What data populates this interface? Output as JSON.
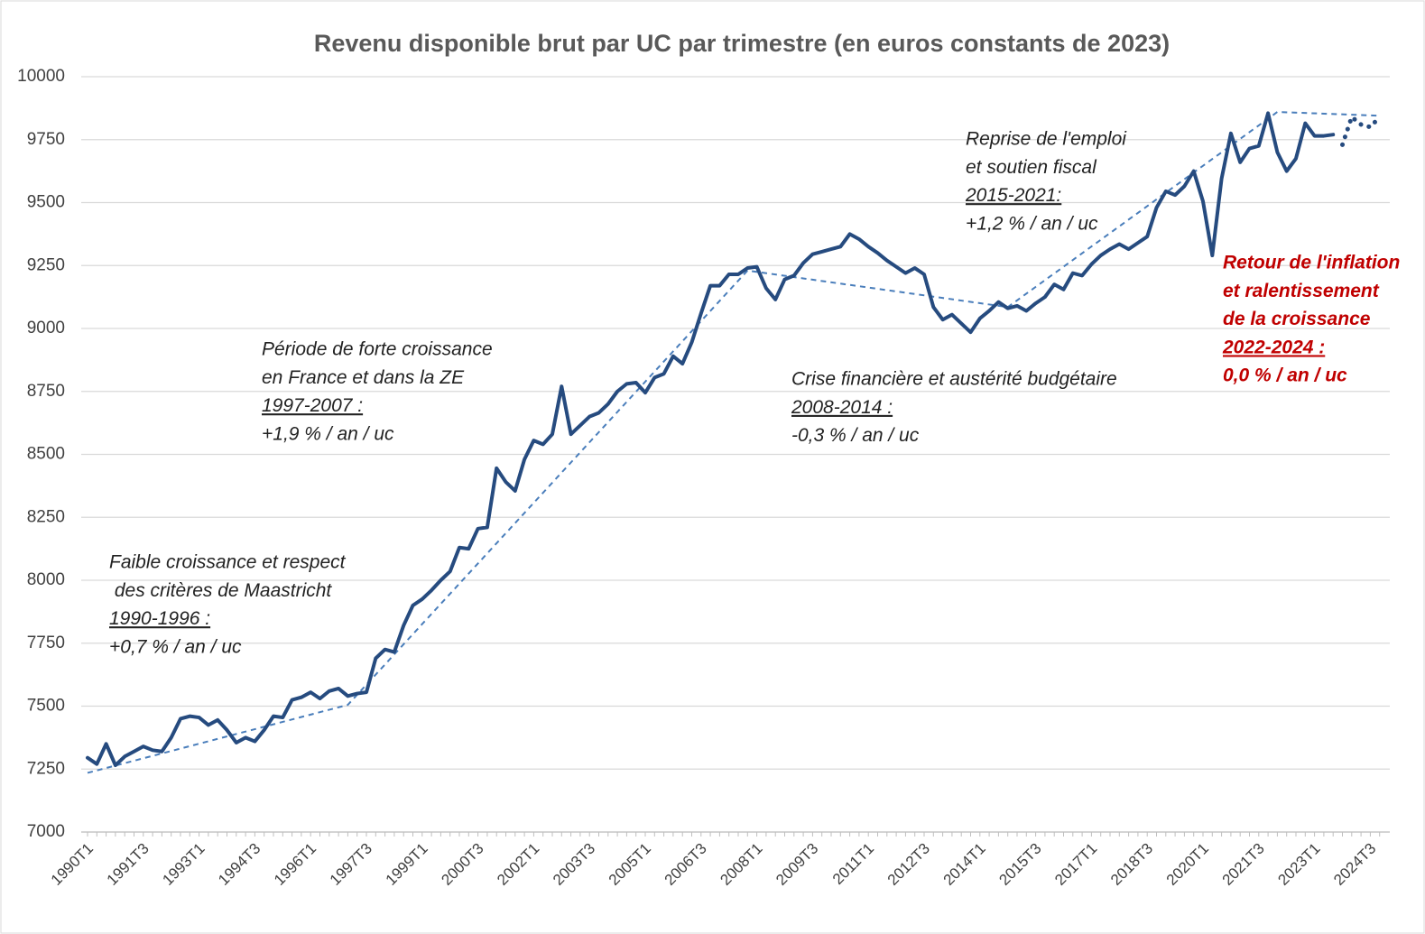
{
  "chart_data": {
    "type": "line",
    "title": "Revenu disponible brut par UC par trimestre (en euros constants de 2023)",
    "categories": [
      "1990T1",
      null,
      null,
      null,
      null,
      null,
      "1991T3",
      null,
      null,
      null,
      null,
      null,
      "1993T1",
      null,
      null,
      null,
      null,
      null,
      "1994T3",
      null,
      null,
      null,
      null,
      null,
      "1996T1",
      null,
      null,
      null,
      null,
      null,
      "1997T3",
      null,
      null,
      null,
      null,
      null,
      "1999T1",
      null,
      null,
      null,
      null,
      null,
      "2000T3",
      null,
      null,
      null,
      null,
      null,
      "2002T1",
      null,
      null,
      null,
      null,
      null,
      "2003T3",
      null,
      null,
      null,
      null,
      null,
      "2005T1",
      null,
      null,
      null,
      null,
      null,
      "2006T3",
      null,
      null,
      null,
      null,
      null,
      "2008T1",
      null,
      null,
      null,
      null,
      null,
      "2009T3",
      null,
      null,
      null,
      null,
      null,
      "2011T1",
      null,
      null,
      null,
      null,
      null,
      "2012T3",
      null,
      null,
      null,
      null,
      null,
      "2014T1",
      null,
      null,
      null,
      null,
      null,
      "2015T3",
      null,
      null,
      null,
      null,
      null,
      "2017T1",
      null,
      null,
      null,
      null,
      null,
      "2018T3",
      null,
      null,
      null,
      null,
      null,
      "2020T1",
      null,
      null,
      null,
      null,
      null,
      "2021T3",
      null,
      null,
      null,
      null,
      null,
      "2023T1",
      null,
      null,
      null,
      null,
      null,
      "2024T3",
      null
    ],
    "series": [
      {
        "color": "#264b7f",
        "style": "solid",
        "values": [
          7295,
          7270,
          7350,
          7265,
          7300,
          7320,
          7340,
          7325,
          7320,
          7375,
          7450,
          7460,
          7455,
          7425,
          7445,
          7405,
          7355,
          7375,
          7360,
          7405,
          7460,
          7455,
          7525,
          7535,
          7555,
          7530,
          7560,
          7570,
          7540,
          7550,
          7555,
          7690,
          7725,
          7715,
          7820,
          7900,
          7925,
          7960,
          8000,
          8035,
          8130,
          8125,
          8205,
          8210,
          8445,
          8390,
          8355,
          8480,
          8555,
          8540,
          8580,
          8770,
          8580,
          8615,
          8650,
          8665,
          8700,
          8750,
          8780,
          8785,
          8745,
          8805,
          8820,
          8890,
          8860,
          8945,
          9060,
          9170,
          9170,
          9215,
          9215,
          9240,
          9245,
          9160,
          9115,
          9195,
          9210,
          9260,
          9295,
          9305,
          9315,
          9325,
          9375,
          9355,
          9325,
          9300,
          9270,
          9245,
          9220,
          9240,
          9215,
          9085,
          9035,
          9055,
          9020,
          8985,
          9040,
          9070,
          9105,
          9080,
          9090,
          9070,
          9100,
          9125,
          9175,
          9155,
          9220,
          9210,
          9255,
          9290,
          9315,
          9335,
          9315,
          9340,
          9365,
          9480,
          9545,
          9530,
          9565,
          9625,
          9505,
          9290,
          9595,
          9775,
          9660,
          9715,
          9725,
          9855,
          9700,
          9625,
          9675,
          9815,
          9765,
          9765,
          9770,
          null,
          null,
          null,
          null,
          null
        ]
      },
      {
        "color": "#264b7f",
        "style": "dotted",
        "values": [
          null,
          null,
          null,
          null,
          null,
          null,
          null,
          null,
          null,
          null,
          null,
          null,
          null,
          null,
          null,
          null,
          null,
          null,
          null,
          null,
          null,
          null,
          null,
          null,
          null,
          null,
          null,
          null,
          null,
          null,
          null,
          null,
          null,
          null,
          null,
          null,
          null,
          null,
          null,
          null,
          null,
          null,
          null,
          null,
          null,
          null,
          null,
          null,
          null,
          null,
          null,
          null,
          null,
          null,
          null,
          null,
          null,
          null,
          null,
          null,
          null,
          null,
          null,
          null,
          null,
          null,
          null,
          null,
          null,
          null,
          null,
          null,
          null,
          null,
          null,
          null,
          null,
          null,
          null,
          null,
          null,
          null,
          null,
          null,
          null,
          null,
          null,
          null,
          null,
          null,
          null,
          null,
          null,
          null,
          null,
          null,
          null,
          null,
          null,
          null,
          null,
          null,
          null,
          null,
          null,
          null,
          null,
          null,
          null,
          null,
          null,
          null,
          null,
          null,
          null,
          null,
          null,
          null,
          null,
          null,
          null,
          null,
          null,
          null,
          null,
          null,
          null,
          null,
          null,
          null,
          null,
          null,
          null,
          null,
          null,
          9730,
          9840,
          9810,
          9800,
          9840
        ]
      }
    ],
    "trend": {
      "color": "#4a7ebb",
      "x": [
        0,
        28,
        71,
        99,
        128,
        139
      ],
      "values": [
        7235,
        7505,
        9230,
        9085,
        9860,
        9845
      ]
    },
    "ylim": [
      7000,
      10000
    ],
    "yticks": [
      7000,
      7250,
      7500,
      7750,
      8000,
      8250,
      8500,
      8750,
      9000,
      9250,
      9500,
      9750,
      10000
    ],
    "grid": true,
    "annotations": [
      {
        "lines": [
          "Faible croissance et respect",
          " des critères de Maastricht",
          "1990-1996 :",
          "+0,7 % / an / uc"
        ]
      },
      {
        "lines": [
          "Période de forte croissance",
          "en France et dans la ZE",
          "1997-2007 :",
          "+1,9 % / an / uc"
        ]
      },
      {
        "lines": [
          "Crise financière et austérité budgétaire",
          "2008-2014 :",
          "-0,3 % / an / uc"
        ]
      },
      {
        "lines": [
          "Reprise de l'emploi",
          "et soutien fiscal",
          "2015-2021:",
          "+1,2 % / an / uc"
        ]
      },
      {
        "lines": [
          "Retour de l'inflation",
          "et ralentissement",
          "de la croissance",
          "2022-2024 :",
          "0,0 % / an / uc"
        ],
        "color": "#c00000"
      }
    ]
  }
}
